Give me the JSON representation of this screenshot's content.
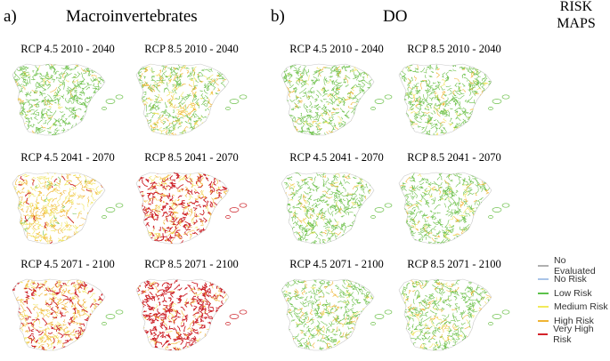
{
  "panel_a": {
    "letter": "a)",
    "title": "Macroinvertebrates"
  },
  "panel_b": {
    "letter": "b)",
    "title": "DO"
  },
  "risk_maps_title": {
    "line1": "RISK",
    "line2": "MAPS"
  },
  "maps": {
    "a": [
      {
        "label": "RCP 4.5 2010 - 2040",
        "mix": {
          "green": 0.85,
          "yellow": 0.07,
          "orange": 0.08,
          "red": 0.0
        }
      },
      {
        "label": "RCP 8.5 2010 - 2040",
        "mix": {
          "green": 0.55,
          "yellow": 0.2,
          "orange": 0.25,
          "red": 0.0
        }
      },
      {
        "label": "RCP 4.5 2041 - 2070",
        "mix": {
          "green": 0.05,
          "yellow": 0.45,
          "orange": 0.45,
          "red": 0.05
        }
      },
      {
        "label": "RCP 8.5 2041 - 2070",
        "mix": {
          "green": 0.0,
          "yellow": 0.12,
          "orange": 0.3,
          "red": 0.58
        }
      },
      {
        "label": "RCP 4.5 2071 - 2100",
        "mix": {
          "green": 0.0,
          "yellow": 0.25,
          "orange": 0.4,
          "red": 0.35
        }
      },
      {
        "label": "RCP 8.5 2071 - 2100",
        "mix": {
          "green": 0.0,
          "yellow": 0.05,
          "orange": 0.2,
          "red": 0.75
        }
      }
    ],
    "b": [
      {
        "label": "RCP 4.5 2010 - 2040",
        "mix": {
          "green": 0.82,
          "yellow": 0.08,
          "orange": 0.1,
          "red": 0.0
        }
      },
      {
        "label": "RCP 8.5 2010 - 2040",
        "mix": {
          "green": 0.8,
          "yellow": 0.08,
          "orange": 0.12,
          "red": 0.0
        }
      },
      {
        "label": "RCP 4.5 2041 - 2070",
        "mix": {
          "green": 0.8,
          "yellow": 0.08,
          "orange": 0.12,
          "red": 0.0
        }
      },
      {
        "label": "RCP 8.5 2041 - 2070",
        "mix": {
          "green": 0.78,
          "yellow": 0.1,
          "orange": 0.12,
          "red": 0.0
        }
      },
      {
        "label": "RCP 4.5 2071 - 2100",
        "mix": {
          "green": 0.75,
          "yellow": 0.1,
          "orange": 0.15,
          "red": 0.0
        }
      },
      {
        "label": "RCP 8.5 2071 - 2100",
        "mix": {
          "green": 0.72,
          "yellow": 0.12,
          "orange": 0.16,
          "red": 0.0
        }
      }
    ]
  },
  "legend": [
    {
      "label": "No Evaluated",
      "color": "#b0b0b0"
    },
    {
      "label": "No Risk",
      "color": "#a9c4e8"
    },
    {
      "label": "Low Risk",
      "color": "#5cc24a"
    },
    {
      "label": "Medium Risk",
      "color": "#f2ea5a"
    },
    {
      "label": "High Risk",
      "color": "#f0b433"
    },
    {
      "label": "Very High Risk",
      "color": "#d4232a"
    }
  ],
  "colors": {
    "green": "#6cc04a",
    "yellow": "#f0e45c",
    "orange": "#f0b433",
    "red": "#cc1f26"
  }
}
